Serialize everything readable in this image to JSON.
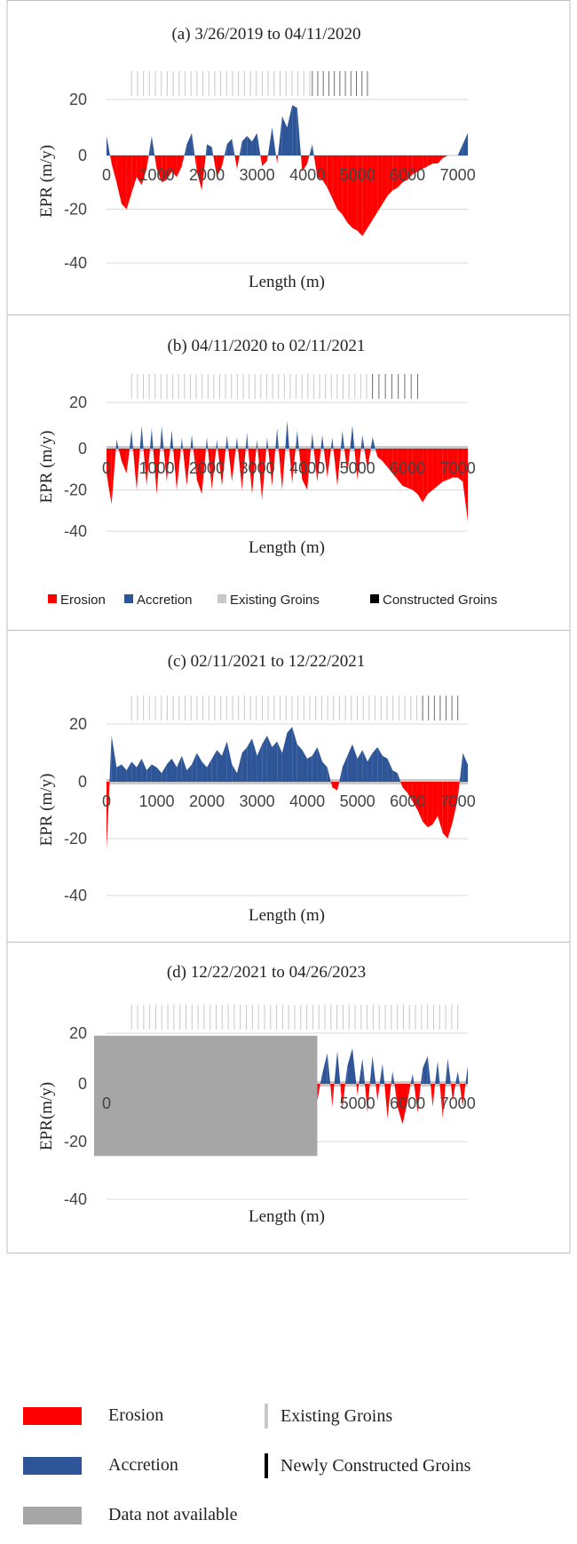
{
  "colors": {
    "erosion": "#ff0000",
    "accretion": "#2e5597",
    "existing_groin": "#c8c8c8",
    "constructed_groin": "#000000",
    "not_available": "#a6a6a6",
    "grid": "#d9d9d9",
    "border": "#bfbfbf"
  },
  "inline_legend": {
    "erosion": "Erosion",
    "accretion": "Accretion",
    "existing": "Existing Groins",
    "constructed": "Constructed Groins"
  },
  "chart_data": [
    {
      "type": "area",
      "title": "(a) 3/26/2019 to 04/11/2020",
      "xlabel": "Length (m)",
      "ylabel": "EPR (m/y)",
      "xlim": [
        0,
        7200
      ],
      "ylim": [
        -40,
        20
      ],
      "yticks": [
        20,
        0,
        -20,
        -40
      ],
      "xticks": [
        0,
        1000,
        2000,
        3000,
        4000,
        5000,
        6000,
        7000
      ],
      "existing_groins": {
        "start": 500,
        "end": 4050,
        "count": 31
      },
      "constructed_groins": {
        "start": 4100,
        "end": 5200,
        "count": 11
      },
      "series": [
        {
          "x": [
            0,
            100,
            200,
            300,
            400,
            500,
            600,
            700,
            800,
            900,
            1000,
            1100,
            1200,
            1300,
            1400,
            1500,
            1600,
            1700,
            1800,
            1900,
            2000,
            2100,
            2200,
            2300,
            2400,
            2500,
            2600,
            2700,
            2800,
            2900,
            3000,
            3100,
            3200,
            3300,
            3400,
            3500,
            3600,
            3700,
            3800,
            3900,
            4000,
            4100,
            4200,
            4300,
            4400,
            4500,
            4600,
            4700,
            4800,
            4900,
            5000,
            5100,
            5200,
            5300,
            5400,
            5500,
            5600,
            5700,
            5800,
            5900,
            6000,
            6100,
            6200,
            6300,
            6400,
            6500,
            6600,
            6700,
            6800,
            6900,
            7000,
            7100,
            7200
          ],
          "values": [
            7,
            -3,
            -10,
            -18,
            -20,
            -14,
            -8,
            -11,
            -5,
            7,
            -5,
            -10,
            -9,
            -6,
            -8,
            -4,
            4,
            8,
            -6,
            -13,
            4,
            3,
            -8,
            -4,
            4,
            6,
            -5,
            5,
            7,
            5,
            8,
            -4,
            -2,
            10,
            -3,
            14,
            10,
            18,
            17,
            -6,
            -3,
            4,
            -8,
            -9,
            -12,
            -16,
            -20,
            -22,
            -25,
            -27,
            -28,
            -30,
            -27,
            -24,
            -21,
            -18,
            -15,
            -13,
            -12,
            -10,
            -9,
            -7,
            -6,
            -5,
            -4,
            -3,
            -3,
            -1,
            0,
            0,
            0,
            4,
            8
          ]
        }
      ]
    },
    {
      "type": "area",
      "title": "(b) 04/11/2020 to 02/11/2021",
      "xlabel": "Length (m)",
      "ylabel": "EPR (m/y)",
      "xlim": [
        0,
        7200
      ],
      "ylim": [
        -40,
        20
      ],
      "yticks": [
        20,
        0,
        -20,
        -40
      ],
      "xticks": [
        0,
        1000,
        2000,
        3000,
        4000,
        5000,
        6000,
        7000
      ],
      "existing_groins": {
        "start": 500,
        "end": 5300,
        "count": 42
      },
      "constructed_groins": {
        "start": 5300,
        "end": 6200,
        "count": 8
      },
      "series": [
        {
          "x": [
            0,
            100,
            200,
            300,
            400,
            500,
            600,
            700,
            800,
            900,
            1000,
            1100,
            1200,
            1300,
            1400,
            1500,
            1600,
            1700,
            1800,
            1900,
            2000,
            2100,
            2200,
            2300,
            2400,
            2500,
            2600,
            2700,
            2800,
            2900,
            3000,
            3100,
            3200,
            3300,
            3400,
            3500,
            3600,
            3700,
            3800,
            3900,
            4000,
            4100,
            4200,
            4300,
            4400,
            4500,
            4600,
            4700,
            4800,
            4900,
            5000,
            5100,
            5200,
            5300,
            5400,
            5500,
            5600,
            5700,
            5800,
            5900,
            6000,
            6100,
            6200,
            6300,
            6400,
            6500,
            6600,
            6700,
            6800,
            6900,
            7000,
            7100,
            7200
          ],
          "values": [
            -12,
            -27,
            4,
            -6,
            -12,
            8,
            -20,
            10,
            -18,
            9,
            -22,
            10,
            -16,
            8,
            -20,
            5,
            -18,
            6,
            -15,
            -22,
            5,
            -20,
            4,
            -18,
            6,
            -16,
            5,
            -20,
            7,
            -22,
            4,
            -25,
            5,
            -18,
            9,
            -20,
            12,
            -17,
            8,
            -15,
            -20,
            7,
            -16,
            6,
            -14,
            5,
            -18,
            8,
            -12,
            10,
            -15,
            6,
            -10,
            5,
            -4,
            -6,
            -9,
            -12,
            -15,
            -18,
            -19,
            -20,
            -22,
            -26,
            -22,
            -20,
            -18,
            -16,
            -15,
            -14,
            -14,
            -16,
            -35
          ]
        }
      ]
    },
    {
      "type": "area",
      "title": "(c) 02/11/2021 to 12/22/2021",
      "xlabel": "Length (m)",
      "ylabel": "EPR (m/y)",
      "xlim": [
        0,
        7200
      ],
      "ylim": [
        -40,
        20
      ],
      "yticks": [
        20,
        0,
        -20,
        -40
      ],
      "xticks": [
        0,
        1000,
        2000,
        3000,
        4000,
        5000,
        6000,
        7000
      ],
      "existing_groins": {
        "start": 500,
        "end": 6300,
        "count": 50
      },
      "constructed_groins": {
        "start": 6300,
        "end": 7000,
        "count": 7
      },
      "series": [
        {
          "x": [
            0,
            100,
            200,
            300,
            400,
            500,
            600,
            700,
            800,
            900,
            1000,
            1100,
            1200,
            1300,
            1400,
            1500,
            1600,
            1700,
            1800,
            1900,
            2000,
            2100,
            2200,
            2300,
            2400,
            2500,
            2600,
            2700,
            2800,
            2900,
            3000,
            3100,
            3200,
            3300,
            3400,
            3500,
            3600,
            3700,
            3800,
            3900,
            4000,
            4100,
            4200,
            4300,
            4400,
            4500,
            4600,
            4700,
            4800,
            4900,
            5000,
            5100,
            5200,
            5300,
            5400,
            5500,
            5600,
            5700,
            5800,
            5900,
            6000,
            6100,
            6200,
            6300,
            6400,
            6500,
            6600,
            6700,
            6800,
            6900,
            7000,
            7100,
            7200
          ],
          "values": [
            -24,
            16,
            5,
            6,
            4,
            7,
            5,
            8,
            4,
            6,
            5,
            3,
            6,
            8,
            5,
            9,
            4,
            6,
            10,
            7,
            5,
            8,
            11,
            9,
            14,
            6,
            3,
            10,
            12,
            15,
            9,
            13,
            16,
            12,
            14,
            10,
            17,
            19,
            13,
            11,
            8,
            9,
            12,
            7,
            5,
            -2,
            -3,
            5,
            9,
            13,
            8,
            11,
            7,
            10,
            12,
            9,
            8,
            4,
            3,
            -2,
            -4,
            -7,
            -10,
            -14,
            -16,
            -15,
            -12,
            -18,
            -20,
            -14,
            -6,
            10,
            6
          ]
        }
      ]
    },
    {
      "type": "area",
      "title": "(d) 12/22/2021 to 04/26/2023",
      "xlabel": "Length (m)",
      "ylabel": "EPR(m/y)",
      "xlim": [
        0,
        7200
      ],
      "ylim": [
        -40,
        20
      ],
      "yticks": [
        20,
        0,
        -20,
        -40
      ],
      "xticks": [
        0,
        5000,
        6000,
        7000
      ],
      "existing_groins": {
        "start": 500,
        "end": 7000,
        "count": 55
      },
      "constructed_groins": null,
      "unavailable_x_end": 4200,
      "unavailable_y_range": [
        -25,
        19
      ],
      "series": [
        {
          "x": [
            4200,
            4300,
            4400,
            4500,
            4600,
            4700,
            4800,
            4900,
            5000,
            5100,
            5200,
            5300,
            5400,
            5500,
            5600,
            5700,
            5800,
            5900,
            6000,
            6100,
            6200,
            6300,
            6400,
            6500,
            6600,
            6700,
            6800,
            6900,
            7000,
            7100,
            7200
          ],
          "values": [
            -6,
            4,
            12,
            -8,
            13,
            -9,
            7,
            14,
            -4,
            10,
            -10,
            11,
            -6,
            8,
            -12,
            5,
            -8,
            -14,
            -6,
            4,
            -10,
            6,
            11,
            -8,
            9,
            -12,
            10,
            -6,
            5,
            -8,
            7
          ]
        }
      ]
    }
  ],
  "legend": {
    "erosion": "Erosion",
    "accretion": "Accretion",
    "not_available": "Data not available",
    "existing": "Existing Groins",
    "newly": "Newly Constructed Groins"
  }
}
